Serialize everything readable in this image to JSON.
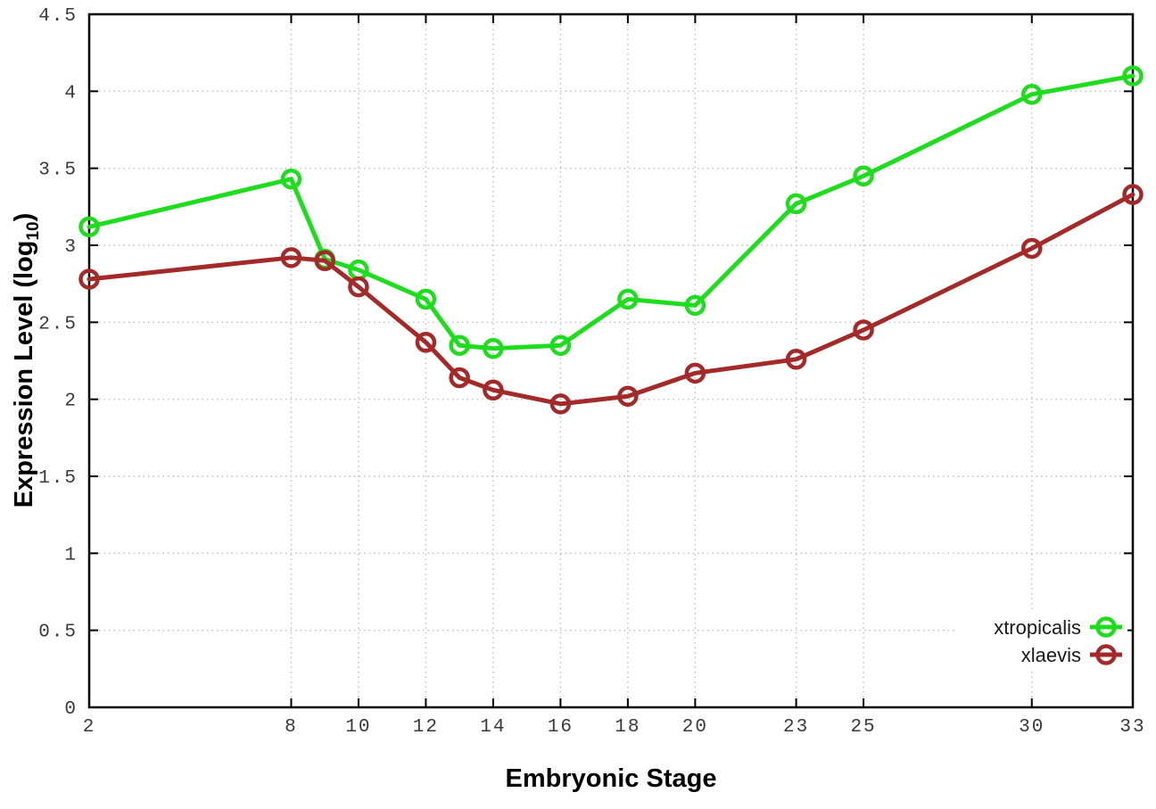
{
  "chart_data": {
    "type": "line",
    "title": "",
    "xlabel": "Embryonic Stage",
    "ylabel": "Expression Level (log10)",
    "ylabel_parts": {
      "main": "Expression Level (log",
      "sub": "10",
      "close": ")"
    },
    "xlim": [
      2,
      33
    ],
    "ylim": [
      0,
      4.5
    ],
    "grid": true,
    "legend_position": "bottom-right",
    "x_ticks": [
      2,
      8,
      10,
      12,
      14,
      16,
      18,
      20,
      23,
      25,
      30,
      33
    ],
    "x_tick_labels": [
      "2",
      "8",
      "10",
      "12",
      "14",
      "16",
      "18",
      "20",
      "23",
      "25",
      "30",
      "33"
    ],
    "y_ticks": [
      0,
      0.5,
      1,
      1.5,
      2,
      2.5,
      3,
      3.5,
      4,
      4.5
    ],
    "y_tick_labels": [
      "0",
      "0.5",
      "1",
      "1.5",
      "2",
      "2.5",
      "3",
      "3.5",
      "4",
      "4.5"
    ],
    "x": [
      2,
      8,
      9,
      10,
      12,
      13,
      14,
      16,
      18,
      20,
      23,
      25,
      30,
      33
    ],
    "series": [
      {
        "name": "xtropicalis",
        "color": "#1ddd1d",
        "values": [
          3.12,
          3.43,
          2.91,
          2.84,
          2.65,
          2.35,
          2.33,
          2.35,
          2.65,
          2.61,
          3.27,
          3.45,
          3.98,
          4.1
        ]
      },
      {
        "name": "xlaevis",
        "color": "#a42a2a",
        "values": [
          2.78,
          2.92,
          2.9,
          2.73,
          2.37,
          2.14,
          2.06,
          1.97,
          2.02,
          2.17,
          2.26,
          2.45,
          2.98,
          3.33
        ]
      }
    ]
  },
  "colors": {
    "background": "#ffffff",
    "grid": "#bfbfbf",
    "axis": "#000000",
    "tick_text": "#3a3a3a",
    "legend_text": "#1a1a1a"
  }
}
